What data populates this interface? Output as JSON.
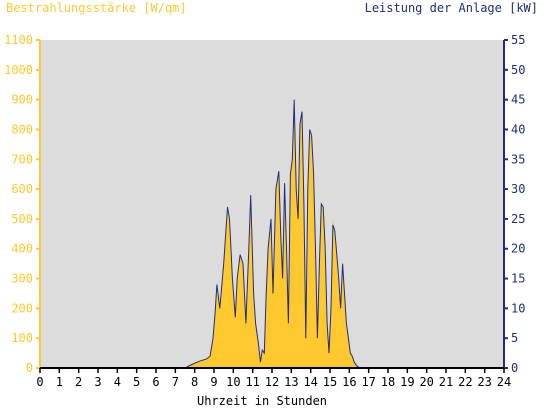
{
  "chart_data": {
    "type": "area",
    "title_left": "Bestrahlungsstärke [W/qm]",
    "title_right": "Leistung der Anlage [kW]",
    "xlabel": "Uhrzeit in Stunden",
    "xlim": [
      0,
      24
    ],
    "ylim_left": [
      0,
      1100
    ],
    "ylim_right": [
      0,
      55
    ],
    "x_ticks": [
      "0",
      "1",
      "2",
      "3",
      "4",
      "5",
      "6",
      "7",
      "8",
      "9",
      "10",
      "11",
      "12",
      "13",
      "14",
      "15",
      "16",
      "17",
      "18",
      "19",
      "20",
      "21",
      "22",
      "23",
      "24"
    ],
    "y_left_ticks": [
      "0",
      "100",
      "200",
      "300",
      "400",
      "500",
      "600",
      "700",
      "800",
      "900",
      "1000",
      "1100"
    ],
    "y_right_ticks": [
      "0",
      "5",
      "10",
      "15",
      "20",
      "25",
      "30",
      "35",
      "40",
      "45",
      "50",
      "55"
    ],
    "grid": false,
    "colors": {
      "plot_background": "#dcdcdc",
      "irradiance_fill": "#ffc82e",
      "power_line": "#1f2f7a",
      "left_axis": "#ffc82e",
      "right_axis": "#1f2f7a"
    },
    "series": [
      {
        "axis": "left",
        "x": [
          7.5,
          7.8,
          8.0,
          8.3,
          8.6,
          8.8,
          8.95,
          9.05,
          9.15,
          9.3,
          9.5,
          9.7,
          9.8,
          9.95,
          10.1,
          10.2,
          10.35,
          10.5,
          10.65,
          10.8,
          10.9,
          11.05,
          11.15,
          11.3,
          11.4,
          11.5,
          11.6,
          11.7,
          11.8,
          11.95,
          12.05,
          12.2,
          12.35,
          12.45,
          12.55,
          12.65,
          12.75,
          12.85,
          12.95,
          13.05,
          13.15,
          13.25,
          13.35,
          13.45,
          13.55,
          13.65,
          13.75,
          13.85,
          13.95,
          14.05,
          14.15,
          14.25,
          14.35,
          14.45,
          14.55,
          14.65,
          14.75,
          14.85,
          14.95,
          15.05,
          15.15,
          15.25,
          15.35,
          15.45,
          15.55,
          15.65,
          15.75,
          15.85,
          15.95,
          16.05,
          16.15,
          16.25,
          16.35,
          16.45,
          16.55,
          16.65,
          16.75,
          16.85,
          16.95,
          17.05,
          17.2,
          17.35,
          17.5,
          17.7,
          17.9,
          18.1
        ],
        "y": [
          0,
          10,
          15,
          25,
          30,
          40,
          100,
          180,
          280,
          200,
          350,
          520,
          500,
          300,
          170,
          300,
          380,
          350,
          150,
          400,
          570,
          250,
          150,
          80,
          20,
          60,
          50,
          250,
          400,
          500,
          250,
          600,
          650,
          450,
          300,
          600,
          400,
          150,
          650,
          700,
          900,
          600,
          500,
          820,
          850,
          550,
          100,
          600,
          800,
          780,
          650,
          400,
          100,
          350,
          560,
          540,
          400,
          150,
          50,
          200,
          500,
          460,
          400,
          300,
          200,
          350,
          250,
          150,
          100,
          50,
          40,
          20,
          10,
          5,
          0,
          0,
          0,
          0,
          0,
          0,
          0,
          0,
          0,
          0,
          0,
          0
        ]
      },
      {
        "axis": "right",
        "x": [
          7.5,
          7.8,
          8.0,
          8.3,
          8.6,
          8.8,
          8.95,
          9.05,
          9.15,
          9.3,
          9.5,
          9.7,
          9.8,
          9.95,
          10.1,
          10.2,
          10.35,
          10.5,
          10.65,
          10.8,
          10.9,
          11.05,
          11.15,
          11.3,
          11.4,
          11.5,
          11.6,
          11.7,
          11.8,
          11.95,
          12.05,
          12.2,
          12.35,
          12.45,
          12.55,
          12.65,
          12.75,
          12.85,
          12.95,
          13.05,
          13.15,
          13.25,
          13.35,
          13.45,
          13.55,
          13.65,
          13.75,
          13.85,
          13.95,
          14.05,
          14.15,
          14.25,
          14.35,
          14.45,
          14.55,
          14.65,
          14.75,
          14.85,
          14.95,
          15.05,
          15.15,
          15.25,
          15.35,
          15.45,
          15.55,
          15.65,
          15.75,
          15.85,
          15.95,
          16.05,
          16.15,
          16.25,
          16.35,
          16.45,
          16.55,
          16.65,
          16.75,
          16.85,
          16.95,
          17.05,
          17.2,
          17.35,
          17.5,
          17.7,
          17.9,
          18.1
        ],
        "y": [
          0,
          0.5,
          0.8,
          1.2,
          1.5,
          2.0,
          5.0,
          9.0,
          14.0,
          10.0,
          17.5,
          27.0,
          25.0,
          15.0,
          8.5,
          15.0,
          19.0,
          17.5,
          7.5,
          20.0,
          29.0,
          12.5,
          7.5,
          4.0,
          1.0,
          3.0,
          2.5,
          12.5,
          20.0,
          25.0,
          12.5,
          30.0,
          33.0,
          22.5,
          15.0,
          31.0,
          20.0,
          7.5,
          32.5,
          35.0,
          45.0,
          30.0,
          25.0,
          41.0,
          43.0,
          27.5,
          5.0,
          30.0,
          40.0,
          39.0,
          32.5,
          20.0,
          5.0,
          17.5,
          27.5,
          27.0,
          20.0,
          7.5,
          2.5,
          10.0,
          24.0,
          23.0,
          19.0,
          15.0,
          10.0,
          17.5,
          12.5,
          7.5,
          5.0,
          2.5,
          2.0,
          1.0,
          0.5,
          0.2,
          0,
          0,
          0,
          0,
          0,
          0,
          0,
          0,
          0,
          0,
          0,
          0
        ]
      }
    ]
  }
}
